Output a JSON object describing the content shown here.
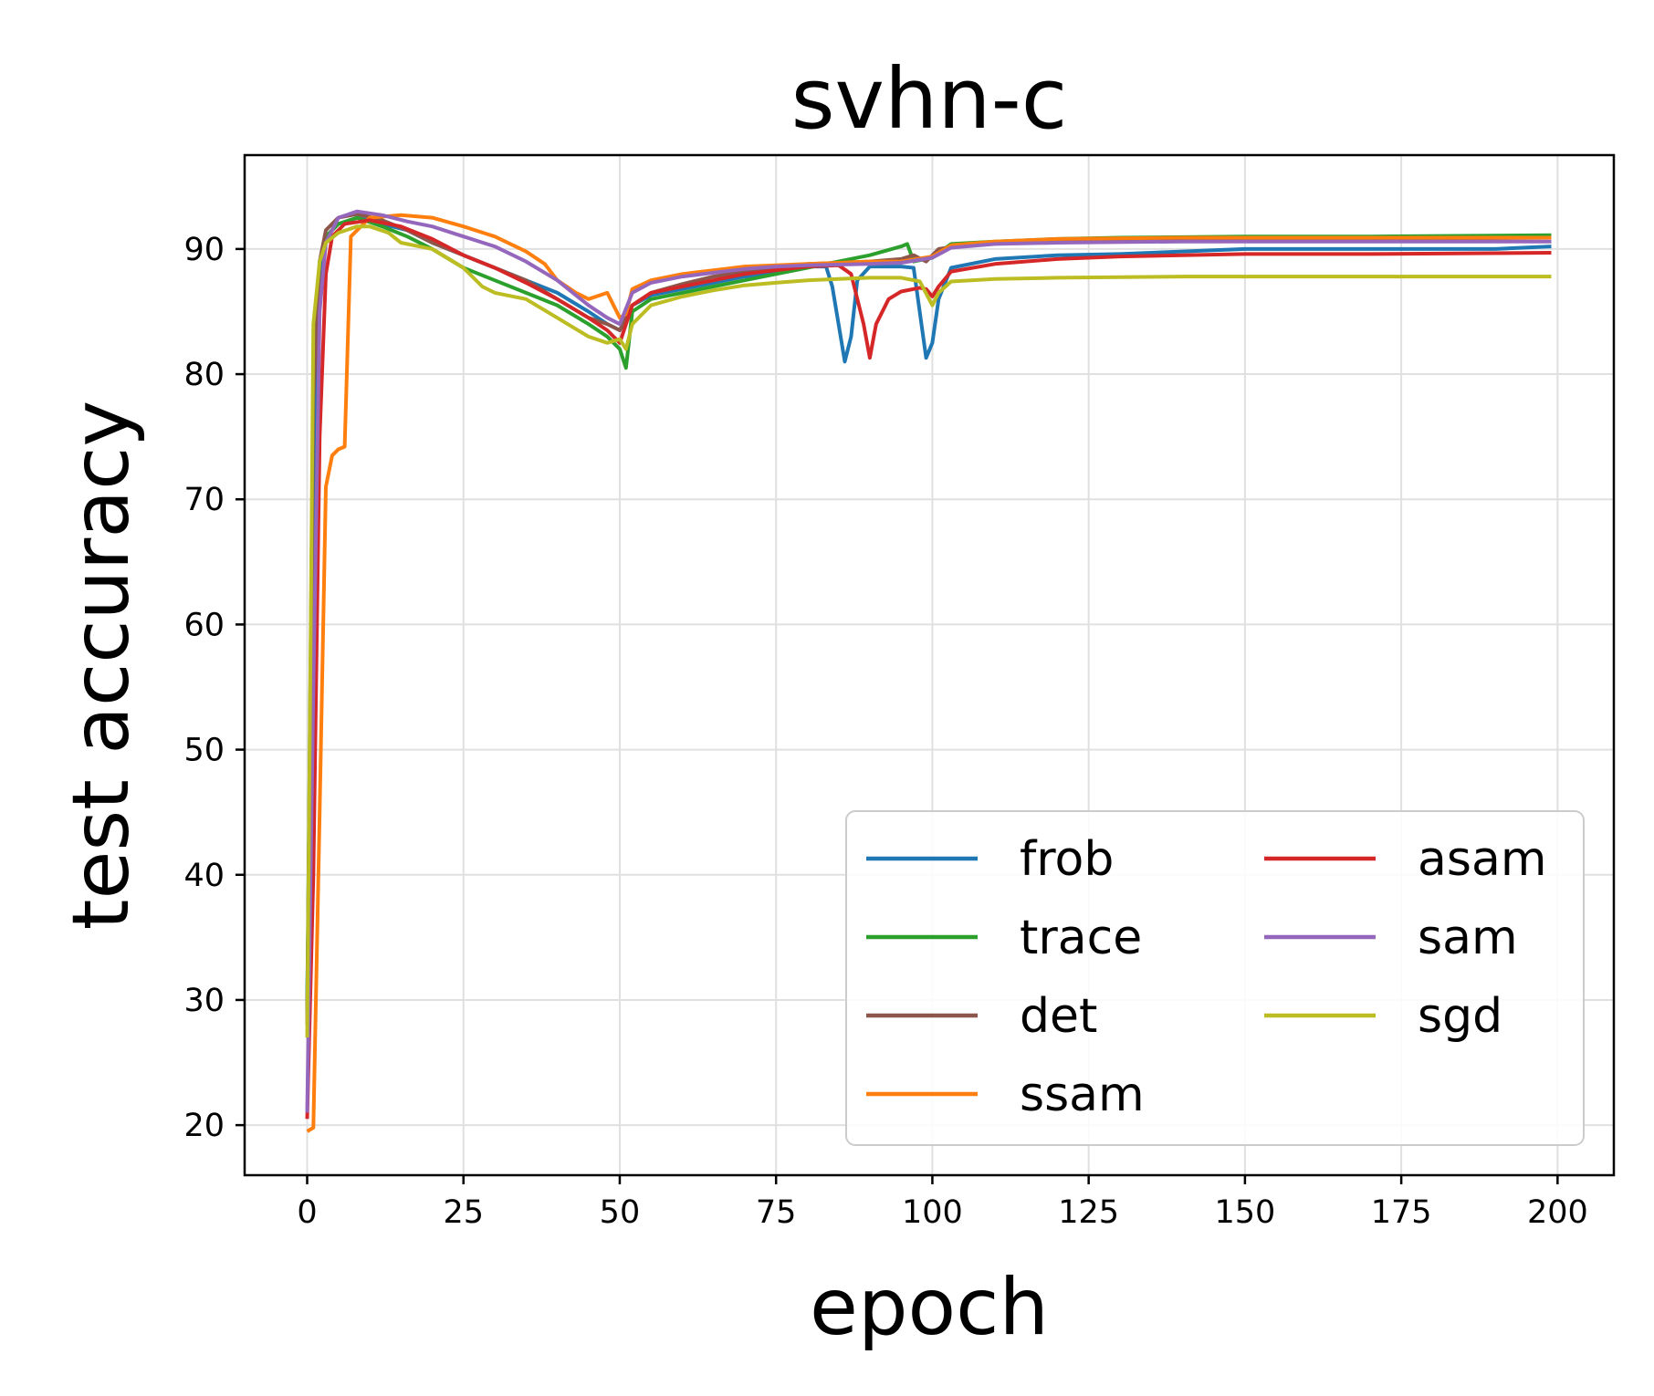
{
  "chart_data": {
    "type": "line",
    "title": "svhn-c",
    "xlabel": "epoch",
    "ylabel": "test accuracy",
    "xlim": [
      -10,
      209
    ],
    "ylim": [
      16,
      97.5
    ],
    "xticks": [
      0,
      25,
      50,
      75,
      100,
      125,
      150,
      175,
      200
    ],
    "yticks": [
      20,
      30,
      40,
      50,
      60,
      70,
      80,
      90
    ],
    "grid": true,
    "legend": {
      "location": "lower right",
      "columns": 2
    },
    "series": [
      {
        "name": "frob",
        "color": "#1f77b4",
        "points": [
          [
            0,
            30
          ],
          [
            1,
            70
          ],
          [
            2,
            88
          ],
          [
            3,
            91
          ],
          [
            5,
            92
          ],
          [
            8,
            92.5
          ],
          [
            12,
            92
          ],
          [
            16,
            91.5
          ],
          [
            20,
            90.5
          ],
          [
            25,
            89.5
          ],
          [
            30,
            88.5
          ],
          [
            35,
            87.5
          ],
          [
            40,
            86.5
          ],
          [
            45,
            85
          ],
          [
            48,
            84
          ],
          [
            50,
            83.5
          ],
          [
            52,
            85.5
          ],
          [
            55,
            86.3
          ],
          [
            60,
            86.8
          ],
          [
            65,
            87.3
          ],
          [
            70,
            87.8
          ],
          [
            75,
            88.2
          ],
          [
            80,
            88.6
          ],
          [
            83,
            88.6
          ],
          [
            84,
            87
          ],
          [
            86,
            81
          ],
          [
            87,
            83
          ],
          [
            88,
            87.5
          ],
          [
            90,
            88.6
          ],
          [
            95,
            88.6
          ],
          [
            97,
            88.5
          ],
          [
            99,
            81.3
          ],
          [
            100,
            82.5
          ],
          [
            101,
            86
          ],
          [
            103,
            88.5
          ],
          [
            110,
            89.2
          ],
          [
            120,
            89.5
          ],
          [
            130,
            89.6
          ],
          [
            140,
            89.8
          ],
          [
            150,
            90
          ],
          [
            160,
            90
          ],
          [
            170,
            90
          ],
          [
            180,
            90
          ],
          [
            190,
            90
          ],
          [
            199,
            90.2
          ]
        ]
      },
      {
        "name": "trace",
        "color": "#2ca02c",
        "points": [
          [
            0,
            29
          ],
          [
            1,
            80
          ],
          [
            2,
            89
          ],
          [
            3,
            91
          ],
          [
            5,
            92
          ],
          [
            8,
            92.5
          ],
          [
            12,
            91.8
          ],
          [
            16,
            91
          ],
          [
            20,
            90
          ],
          [
            25,
            88.5
          ],
          [
            30,
            87.5
          ],
          [
            35,
            86.5
          ],
          [
            40,
            85.5
          ],
          [
            45,
            84
          ],
          [
            48,
            83
          ],
          [
            50,
            82
          ],
          [
            51,
            80.5
          ],
          [
            52,
            85
          ],
          [
            55,
            86
          ],
          [
            60,
            86.5
          ],
          [
            65,
            87
          ],
          [
            70,
            87.5
          ],
          [
            75,
            88
          ],
          [
            80,
            88.5
          ],
          [
            85,
            89
          ],
          [
            90,
            89.5
          ],
          [
            95,
            90.2
          ],
          [
            96,
            90.4
          ],
          [
            97,
            89
          ],
          [
            100,
            89.3
          ],
          [
            103,
            90.4
          ],
          [
            110,
            90.6
          ],
          [
            120,
            90.8
          ],
          [
            130,
            90.9
          ],
          [
            150,
            91
          ],
          [
            170,
            91
          ],
          [
            199,
            91.1
          ]
        ]
      },
      {
        "name": "det",
        "color": "#8c564b",
        "points": [
          [
            0,
            28
          ],
          [
            1,
            78
          ],
          [
            2,
            89
          ],
          [
            3,
            91.5
          ],
          [
            5,
            92.5
          ],
          [
            8,
            92.8
          ],
          [
            12,
            92.3
          ],
          [
            16,
            91.5
          ],
          [
            20,
            90.5
          ],
          [
            25,
            89.5
          ],
          [
            30,
            88.5
          ],
          [
            35,
            87.5
          ],
          [
            40,
            86
          ],
          [
            45,
            84.5
          ],
          [
            48,
            84
          ],
          [
            50,
            83.5
          ],
          [
            52,
            85.5
          ],
          [
            55,
            86.5
          ],
          [
            60,
            87.2
          ],
          [
            65,
            87.8
          ],
          [
            70,
            88.2
          ],
          [
            75,
            88.5
          ],
          [
            80,
            88.8
          ],
          [
            85,
            88.9
          ],
          [
            90,
            89
          ],
          [
            95,
            89.2
          ],
          [
            97,
            89.5
          ],
          [
            99,
            89
          ],
          [
            101,
            90
          ],
          [
            105,
            90.3
          ],
          [
            110,
            90.5
          ],
          [
            120,
            90.7
          ],
          [
            140,
            90.8
          ],
          [
            170,
            90.8
          ],
          [
            199,
            90.9
          ]
        ]
      },
      {
        "name": "ssam",
        "color": "#ff7f0e",
        "points": [
          [
            0,
            19.5
          ],
          [
            1,
            19.8
          ],
          [
            2,
            45
          ],
          [
            3,
            71
          ],
          [
            4,
            73.5
          ],
          [
            5,
            74
          ],
          [
            6,
            74.2
          ],
          [
            7,
            91
          ],
          [
            10,
            92.5
          ],
          [
            15,
            92.7
          ],
          [
            20,
            92.5
          ],
          [
            25,
            91.8
          ],
          [
            30,
            91
          ],
          [
            35,
            89.8
          ],
          [
            38,
            88.8
          ],
          [
            40,
            87.5
          ],
          [
            43,
            86.5
          ],
          [
            45,
            86
          ],
          [
            48,
            86.5
          ],
          [
            50,
            84.5
          ],
          [
            51,
            84.8
          ],
          [
            52,
            86.8
          ],
          [
            55,
            87.5
          ],
          [
            60,
            88
          ],
          [
            65,
            88.3
          ],
          [
            70,
            88.6
          ],
          [
            75,
            88.7
          ],
          [
            80,
            88.8
          ],
          [
            85,
            88.9
          ],
          [
            90,
            89
          ],
          [
            95,
            89
          ],
          [
            100,
            89.4
          ],
          [
            103,
            90.3
          ],
          [
            110,
            90.6
          ],
          [
            120,
            90.8
          ],
          [
            140,
            90.9
          ],
          [
            170,
            90.9
          ],
          [
            199,
            90.9
          ]
        ]
      },
      {
        "name": "asam",
        "color": "#d62728",
        "points": [
          [
            0,
            20.5
          ],
          [
            1,
            40
          ],
          [
            2,
            75
          ],
          [
            3,
            88
          ],
          [
            4,
            91
          ],
          [
            6,
            92
          ],
          [
            10,
            92.3
          ],
          [
            15,
            91.8
          ],
          [
            20,
            90.8
          ],
          [
            25,
            89.5
          ],
          [
            30,
            88.5
          ],
          [
            35,
            87.3
          ],
          [
            40,
            86
          ],
          [
            45,
            84.5
          ],
          [
            48,
            83.5
          ],
          [
            50,
            82.5
          ],
          [
            52,
            85.5
          ],
          [
            55,
            86.5
          ],
          [
            60,
            87
          ],
          [
            65,
            87.5
          ],
          [
            70,
            88
          ],
          [
            75,
            88.3
          ],
          [
            80,
            88.6
          ],
          [
            85,
            88.7
          ],
          [
            87,
            88
          ],
          [
            89,
            84
          ],
          [
            90,
            81.3
          ],
          [
            91,
            84
          ],
          [
            93,
            86
          ],
          [
            95,
            86.6
          ],
          [
            98,
            86.9
          ],
          [
            99,
            86.8
          ],
          [
            100,
            86.2
          ],
          [
            101,
            87
          ],
          [
            103,
            88.2
          ],
          [
            110,
            88.8
          ],
          [
            120,
            89.2
          ],
          [
            130,
            89.4
          ],
          [
            150,
            89.6
          ],
          [
            170,
            89.6
          ],
          [
            199,
            89.7
          ]
        ]
      },
      {
        "name": "sam",
        "color": "#9467bd",
        "points": [
          [
            0,
            21
          ],
          [
            1,
            55
          ],
          [
            2,
            85
          ],
          [
            3,
            90.5
          ],
          [
            5,
            92.5
          ],
          [
            8,
            93
          ],
          [
            12,
            92.7
          ],
          [
            16,
            92.2
          ],
          [
            20,
            91.8
          ],
          [
            25,
            91
          ],
          [
            30,
            90.2
          ],
          [
            35,
            89
          ],
          [
            40,
            87.5
          ],
          [
            45,
            85.5
          ],
          [
            48,
            84.5
          ],
          [
            50,
            84
          ],
          [
            52,
            86.5
          ],
          [
            55,
            87.3
          ],
          [
            60,
            87.8
          ],
          [
            65,
            88.1
          ],
          [
            70,
            88.4
          ],
          [
            75,
            88.6
          ],
          [
            80,
            88.7
          ],
          [
            90,
            88.8
          ],
          [
            95,
            88.9
          ],
          [
            100,
            89.3
          ],
          [
            103,
            90.1
          ],
          [
            110,
            90.4
          ],
          [
            120,
            90.5
          ],
          [
            140,
            90.6
          ],
          [
            170,
            90.6
          ],
          [
            199,
            90.6
          ]
        ]
      },
      {
        "name": "sgd",
        "color": "#bcbd22",
        "points": [
          [
            0,
            27
          ],
          [
            1,
            84
          ],
          [
            2,
            89
          ],
          [
            3,
            90.5
          ],
          [
            5,
            91.3
          ],
          [
            8,
            91.8
          ],
          [
            10,
            91.8
          ],
          [
            13,
            91.3
          ],
          [
            15,
            90.5
          ],
          [
            20,
            90
          ],
          [
            25,
            88.5
          ],
          [
            28,
            87
          ],
          [
            30,
            86.5
          ],
          [
            35,
            86
          ],
          [
            40,
            84.5
          ],
          [
            45,
            83
          ],
          [
            48,
            82.5
          ],
          [
            50,
            82.8
          ],
          [
            51,
            82
          ],
          [
            52,
            84
          ],
          [
            55,
            85.5
          ],
          [
            60,
            86.2
          ],
          [
            65,
            86.7
          ],
          [
            70,
            87.1
          ],
          [
            75,
            87.3
          ],
          [
            80,
            87.5
          ],
          [
            85,
            87.6
          ],
          [
            90,
            87.7
          ],
          [
            95,
            87.7
          ],
          [
            98,
            87.4
          ],
          [
            100,
            85.5
          ],
          [
            101,
            86.5
          ],
          [
            103,
            87.4
          ],
          [
            110,
            87.6
          ],
          [
            120,
            87.7
          ],
          [
            140,
            87.8
          ],
          [
            170,
            87.8
          ],
          [
            199,
            87.8
          ]
        ]
      }
    ]
  }
}
